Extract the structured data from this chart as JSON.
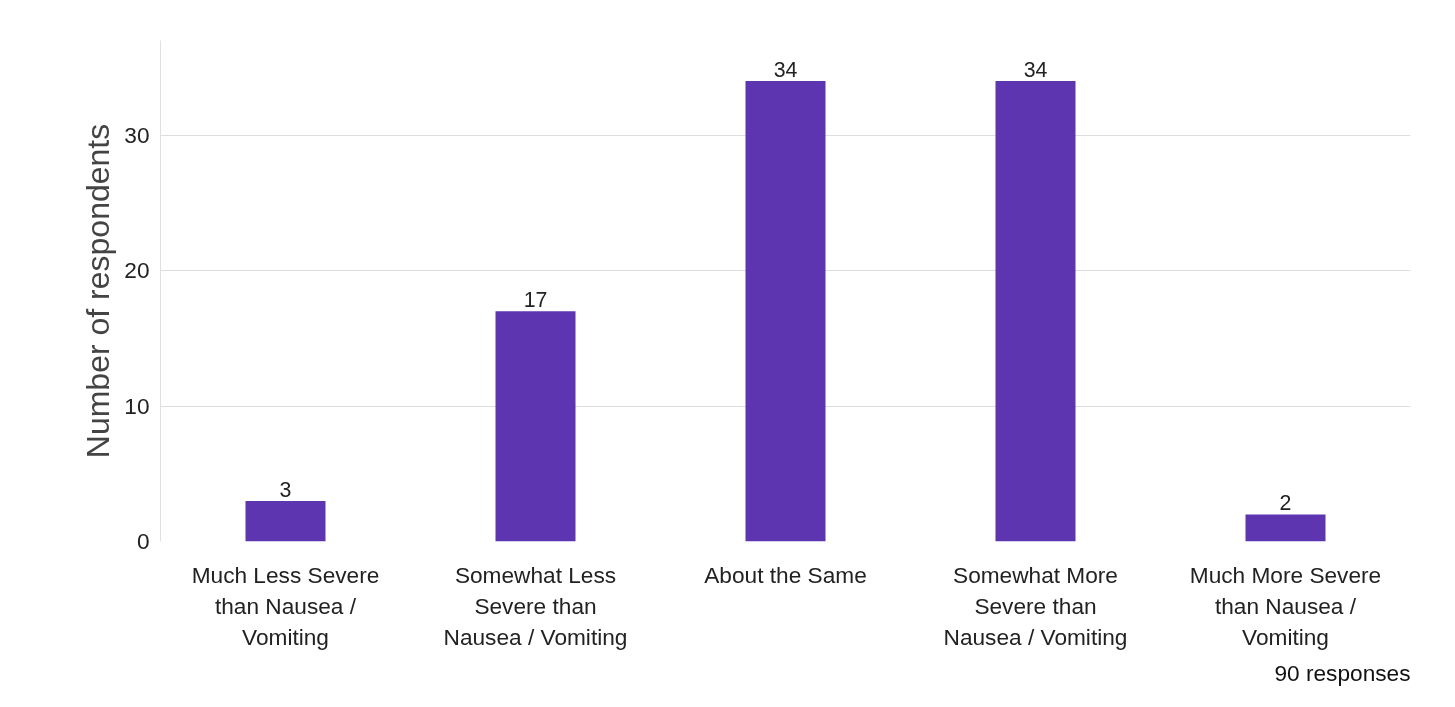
{
  "chart_data": {
    "type": "bar",
    "categories": [
      "Much Less Severe than Nausea / Vomiting",
      "Somewhat Less Severe than Nausea / Vomiting",
      "About the Same",
      "Somewhat More Severe than Nausea / Vomiting",
      "Much More Severe than Nausea / Vomiting"
    ],
    "values": [
      3,
      17,
      34,
      34,
      2
    ],
    "color": "#5e35b1",
    "ylabel": "Number of respondents",
    "ylim": [
      0,
      37
    ],
    "yticks": [
      0,
      10,
      20,
      30
    ],
    "grid": "y",
    "data_labels": true,
    "annotations": [
      "90 responses"
    ]
  }
}
